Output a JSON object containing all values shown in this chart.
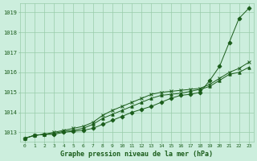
{
  "title": "Graphe pression niveau de la mer (hPa)",
  "xlabel_ticks": [
    0,
    1,
    2,
    3,
    4,
    5,
    6,
    7,
    8,
    9,
    10,
    11,
    12,
    13,
    14,
    15,
    16,
    17,
    18,
    19,
    20,
    21,
    22,
    23
  ],
  "ylim": [
    1012.55,
    1019.45
  ],
  "xlim": [
    -0.5,
    23.5
  ],
  "yticks": [
    1013,
    1014,
    1015,
    1016,
    1017,
    1018,
    1019
  ],
  "background_color": "#cceedd",
  "grid_color": "#99ccaa",
  "line_color": "#1a5c1a",
  "marker_color": "#1a5c1a",
  "title_color": "#1a5c1a",
  "series": [
    {
      "y": [
        1012.7,
        1012.85,
        1012.9,
        1012.9,
        1013.0,
        1013.05,
        1013.1,
        1013.2,
        1013.4,
        1013.6,
        1013.8,
        1014.0,
        1014.15,
        1014.3,
        1014.5,
        1014.7,
        1014.85,
        1014.9,
        1015.0,
        1015.6,
        1016.3,
        1017.5,
        1018.7,
        1019.2
      ],
      "marker": "D",
      "ms": 2.5
    },
    {
      "y": [
        1012.7,
        1012.85,
        1012.9,
        1012.95,
        1013.05,
        1013.1,
        1013.2,
        1013.4,
        1013.7,
        1013.9,
        1014.1,
        1014.3,
        1014.5,
        1014.7,
        1014.85,
        1014.9,
        1014.95,
        1015.05,
        1015.15,
        1015.3,
        1015.6,
        1015.9,
        1016.0,
        1016.25
      ],
      "marker": "^",
      "ms": 2.5
    },
    {
      "y": [
        1012.7,
        1012.85,
        1012.9,
        1013.0,
        1013.1,
        1013.2,
        1013.3,
        1013.5,
        1013.85,
        1014.1,
        1014.3,
        1014.5,
        1014.7,
        1014.9,
        1015.0,
        1015.05,
        1015.1,
        1015.15,
        1015.2,
        1015.4,
        1015.7,
        1016.0,
        1016.2,
        1016.5
      ],
      "marker": "x",
      "ms": 2.5
    }
  ]
}
